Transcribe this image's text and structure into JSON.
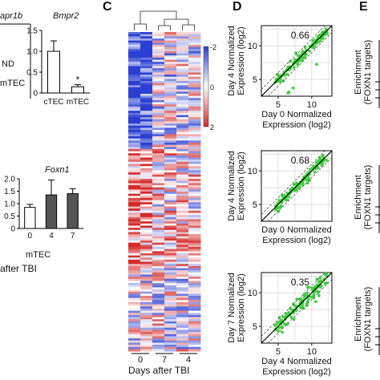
{
  "panels": {
    "c_label": "C",
    "d_label": "D",
    "e_label": "E"
  },
  "panel_a": {
    "gene1_title": "apr1b",
    "gene1_nd": "ND",
    "gene1_mtec": "mTEC",
    "gene2_title": "Bmpr2",
    "gene2_categories": [
      "cTEC",
      "mTEC"
    ],
    "gene2_yticks": [
      "0",
      "0.5",
      "1.0",
      "1.5"
    ],
    "gene2_star": "*",
    "foxn1_title": "Foxn1",
    "foxn1_yticks": [
      "0",
      "0.5",
      "1.0",
      "1.5",
      "2.0"
    ],
    "foxn1_xticks": [
      "0",
      "4",
      "7"
    ],
    "foxn1_group": "mTEC",
    "foxn1_caption": "after TBI"
  },
  "heatmap": {
    "colorbar_ticks": [
      "-2",
      "0",
      "2"
    ],
    "col_labels": [
      "0",
      "7",
      "4"
    ],
    "xlabel": "Days after TBI",
    "colors": {
      "low": "#2b3fd1",
      "mid": "#ffffff",
      "high": "#d42a2a"
    }
  },
  "scatter_panels": [
    {
      "ylabel_line1": "Day 4 Normalized",
      "ylabel_line2": "Expression (log2)",
      "xlabel_line1": "Day 0 Normalized",
      "xlabel_line2": "Expression (log2)",
      "r": "0.66",
      "yticks": [
        "5",
        "10"
      ],
      "xticks": [
        "5",
        "10"
      ],
      "show_xticks": true
    },
    {
      "ylabel_line1": "Day 4 Normalized",
      "ylabel_line2": "Expression (log2)",
      "xlabel_line1": "Day 0 Normalized",
      "xlabel_line2": "Expression (log2)",
      "r": "0.68",
      "yticks": [
        "5",
        "10"
      ],
      "xticks": [],
      "show_xticks": false
    },
    {
      "ylabel_line1": "Day 7 Normalized",
      "ylabel_line2": "Expression (log2)",
      "xlabel_line1": "Day 4 Normalized",
      "xlabel_line2": "Expression (log2)",
      "r": "0.35",
      "yticks": [
        "5",
        "10"
      ],
      "xticks": [
        "5",
        "10"
      ],
      "show_xticks": true
    }
  ],
  "panel_e": {
    "ylabel_line1": "Enrichment",
    "ylabel_line2": "(FOXN1 targets)"
  },
  "chart_data": [
    {
      "type": "bar",
      "title": "Bmpr2",
      "categories": [
        "cTEC",
        "mTEC"
      ],
      "values": [
        1.0,
        0.15
      ],
      "errors": [
        0.25,
        0.05
      ],
      "ylim": [
        0,
        1.5
      ],
      "colors": [
        "#ffffff",
        "#ffffff"
      ]
    },
    {
      "type": "bar",
      "title": "Foxn1",
      "categories": [
        "0",
        "4",
        "7"
      ],
      "values": [
        0.85,
        1.35,
        1.4
      ],
      "errors": [
        0.12,
        0.6,
        0.2
      ],
      "ylim": [
        0,
        2.0
      ],
      "colors": [
        "#ffffff",
        "#555555",
        "#555555"
      ]
    }
  ]
}
